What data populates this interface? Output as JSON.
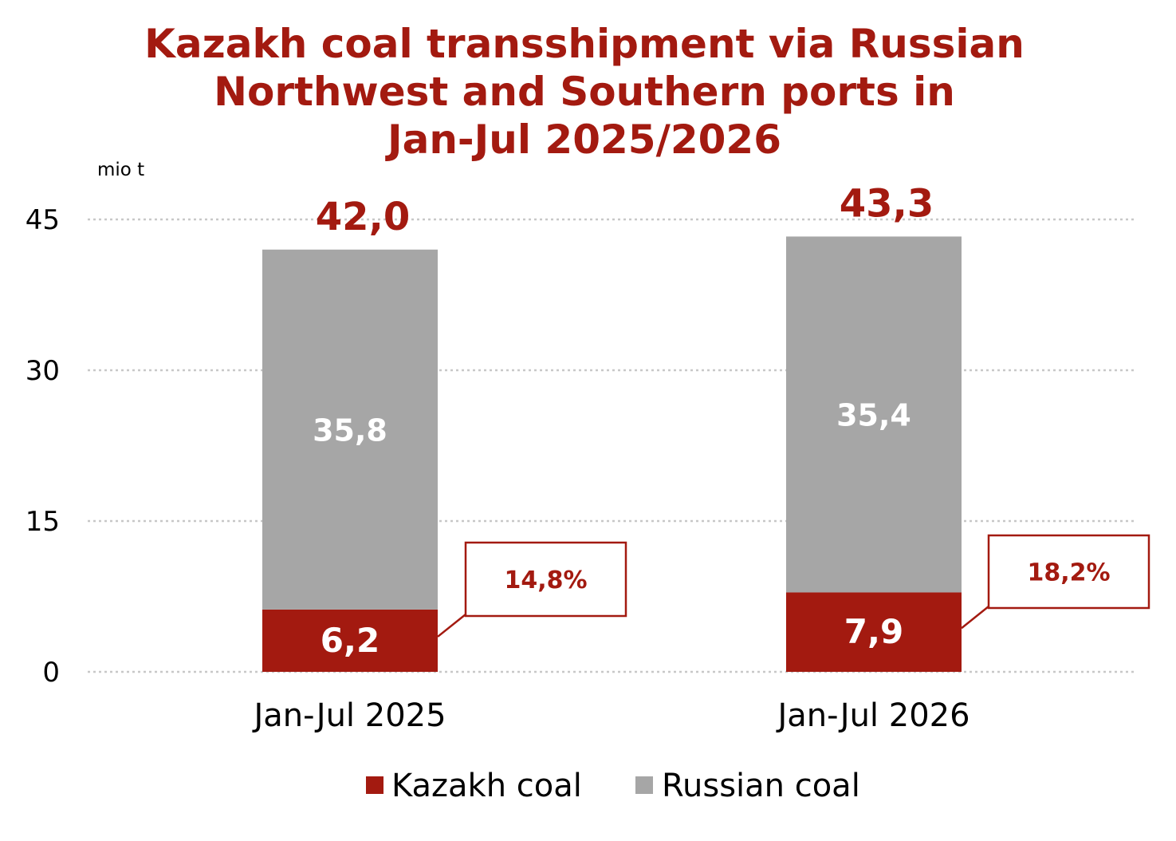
{
  "colors": {
    "title": "#a31a10",
    "kazakh": "#a31a10",
    "russian": "#a6a6a6",
    "grid": "#c8c8c8",
    "callout_border": "#a31a10",
    "callout_text": "#a31a10",
    "segment_label": "#ffffff"
  },
  "chart_data": {
    "type": "bar",
    "stacked": true,
    "title_lines": [
      "Kazakh coal transshipment via Russian",
      "Northwest and Southern ports in",
      "Jan-Jul 2025/2026"
    ],
    "unit_label": "mio t",
    "categories": [
      "Jan-Jul 2025",
      "Jan-Jul 2026"
    ],
    "series": [
      {
        "name": "Kazakh coal",
        "values": [
          6.2,
          7.9
        ],
        "labels": [
          "6,2",
          "7,9"
        ]
      },
      {
        "name": "Russian coal",
        "values": [
          35.8,
          35.4
        ],
        "labels": [
          "35,8",
          "35,4"
        ]
      }
    ],
    "totals": [
      42.0,
      43.3
    ],
    "total_labels": [
      "42,0",
      "43,3"
    ],
    "share_labels": [
      "14,8%",
      "18,2%"
    ],
    "ylim": [
      0,
      45
    ],
    "yticks": [
      0,
      15,
      30,
      45
    ],
    "grid": true,
    "legend_position": "bottom"
  }
}
